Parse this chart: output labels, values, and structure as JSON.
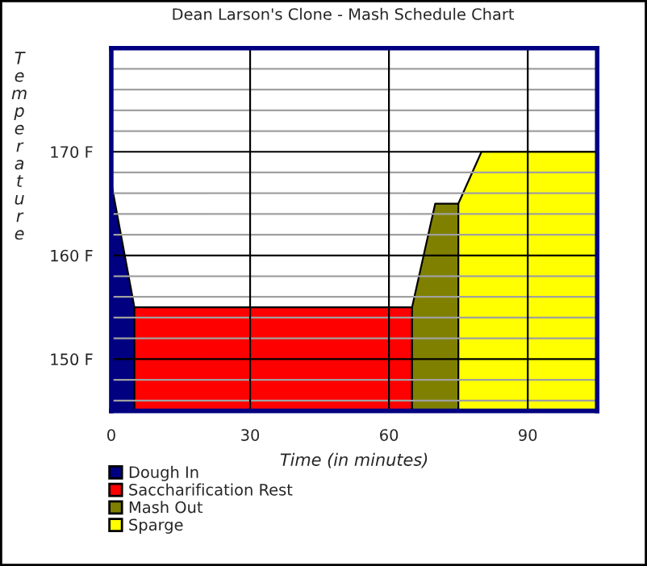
{
  "chart_data": {
    "type": "area",
    "title": "Dean Larson's Clone - Mash Schedule Chart",
    "xlabel": "Time (in minutes)",
    "ylabel": "Temperature",
    "series": [
      {
        "name": "Dough In",
        "color": "#000080",
        "x": [
          0,
          5
        ],
        "values": [
          167,
          155
        ]
      },
      {
        "name": "Saccharification Rest",
        "color": "#ff0000",
        "x": [
          5,
          65
        ],
        "values": [
          155,
          155
        ]
      },
      {
        "name": "Mash Out",
        "color": "#808000",
        "x": [
          65,
          70,
          75
        ],
        "values": [
          155,
          165,
          165
        ]
      },
      {
        "name": "Sparge",
        "color": "#ffff00",
        "x": [
          75,
          80,
          105
        ],
        "values": [
          165,
          170,
          170
        ]
      }
    ],
    "xlim": [
      0,
      105
    ],
    "xticks": [
      0,
      30,
      60,
      90
    ],
    "ylim": [
      145,
      180
    ],
    "yticks": [
      {
        "value": 146,
        "label": null
      },
      {
        "value": 148,
        "label": null
      },
      {
        "value": 150,
        "label": "150 F"
      },
      {
        "value": 152,
        "label": null
      },
      {
        "value": 154,
        "label": null
      },
      {
        "value": 156,
        "label": null
      },
      {
        "value": 158,
        "label": null
      },
      {
        "value": 160,
        "label": "160 F"
      },
      {
        "value": 162,
        "label": null
      },
      {
        "value": 164,
        "label": null
      },
      {
        "value": 166,
        "label": null
      },
      {
        "value": 168,
        "label": null
      },
      {
        "value": 170,
        "label": "170 F"
      },
      {
        "value": 172,
        "label": null
      },
      {
        "value": 174,
        "label": null
      },
      {
        "value": 176,
        "label": null
      },
      {
        "value": 178,
        "label": null
      }
    ],
    "grid": true,
    "legend": "bottom left"
  }
}
